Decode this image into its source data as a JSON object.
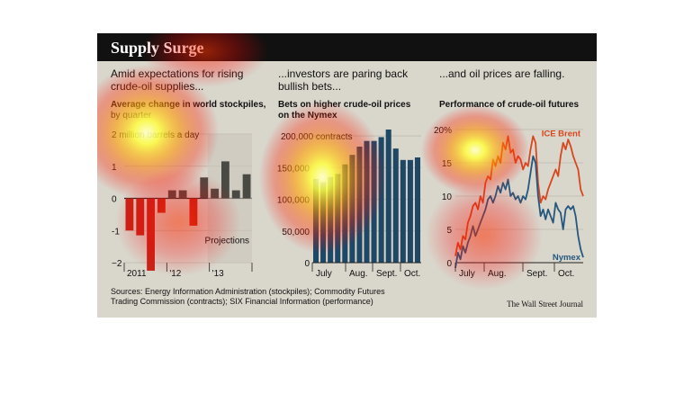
{
  "title": "Supply Surge",
  "panels": [
    {
      "heading": "Amid expectations for rising crude-oil supplies...",
      "subtitle": "Average change in world stockpiles,",
      "subtitle_note": "by quarter"
    },
    {
      "heading": "...investors are paring back bullish bets...",
      "subtitle": "Bets on higher crude-oil prices on the Nymex"
    },
    {
      "heading": "...and oil prices are falling.",
      "subtitle": "Performance of crude-oil futures"
    }
  ],
  "sources": "Sources: Energy Information Administration (stockpiles); Commodity Futures Trading Commission (contracts); SIX Financial Information (performance)",
  "credit": "The Wall Street Journal",
  "colors": {
    "title_bar": "#111111",
    "background": "#d9d6cc",
    "bar_red": "#c62418",
    "bar_gray": "#4a4a44",
    "bar_blue": "#1f4766",
    "brent": "#d9461e",
    "nymex": "#24587e"
  },
  "chart_data": [
    {
      "type": "bar",
      "units_label": "2 million barrels a day",
      "categories": [
        "2011",
        "",
        "",
        "",
        "'12",
        "",
        "",
        "",
        "'13",
        "",
        "",
        ""
      ],
      "x_tick_labels": [
        "2011",
        "'12",
        "'13"
      ],
      "values": [
        -1.0,
        -1.15,
        -2.25,
        -0.45,
        0.25,
        0.25,
        -0.85,
        0.65,
        0.3,
        1.15,
        0.25,
        0.75
      ],
      "projection_start_index": 8,
      "annotation": "Projections",
      "ylim": [
        -2,
        2
      ],
      "y_ticks": [
        2,
        1,
        0,
        -1,
        -2
      ],
      "y_tick_labels": [
        "2 million barrels a day",
        "1",
        "0",
        "-1",
        "−2"
      ]
    },
    {
      "type": "bar",
      "units_label": "200,000 contracts",
      "values": [
        132000,
        127000,
        135000,
        140000,
        155000,
        170000,
        183000,
        192000,
        192000,
        198000,
        210000,
        180000,
        162000,
        162000,
        166000
      ],
      "ylim": [
        0,
        210000
      ],
      "y_ticks": [
        200000,
        150000,
        100000,
        50000,
        0
      ],
      "y_tick_labels": [
        "200,000 contracts",
        "150,000",
        "100,000",
        "50,000",
        "0"
      ],
      "x_tick_labels": [
        "July",
        "Aug.",
        "Sept.",
        "Oct."
      ]
    },
    {
      "type": "line",
      "x_tick_labels": [
        "July",
        "Aug.",
        "Sept.",
        "Oct."
      ],
      "ylim": [
        0,
        20
      ],
      "y_ticks": [
        20,
        15,
        10,
        5,
        0
      ],
      "y_tick_labels": [
        "20%",
        "15",
        "10",
        "5",
        "0"
      ],
      "series": [
        {
          "name": "ICE Brent",
          "values": [
            1.0,
            3.0,
            2.0,
            4.0,
            3.5,
            6.0,
            7.0,
            8.5,
            9.0,
            8.0,
            10.0,
            9.0,
            12.0,
            13.0,
            12.5,
            15.5,
            14.5,
            16.0,
            15.0,
            18.0,
            17.0,
            19.0,
            16.5,
            17.0,
            15.0,
            16.0,
            15.5,
            14.0,
            15.0,
            14.5,
            17.0,
            19.0,
            18.0,
            12.0,
            9.0,
            10.0,
            9.5,
            11.0,
            12.0,
            13.0,
            14.0,
            13.0,
            16.0,
            18.0,
            17.0,
            18.5,
            17.5,
            16.0,
            15.0,
            14.0,
            11.0,
            10.0
          ]
        },
        {
          "name": "Nymex",
          "values": [
            -0.8,
            1.5,
            0.5,
            2.5,
            1.5,
            3.0,
            4.0,
            5.5,
            4.0,
            5.0,
            6.0,
            7.0,
            8.0,
            9.5,
            10.0,
            9.0,
            10.0,
            11.5,
            10.5,
            12.0,
            11.0,
            12.5,
            10.0,
            10.5,
            9.5,
            10.0,
            9.0,
            10.0,
            9.5,
            11.0,
            13.5,
            16.0,
            15.0,
            10.0,
            7.0,
            8.0,
            6.5,
            8.0,
            7.0,
            6.0,
            9.0,
            8.0,
            7.5,
            5.0,
            8.0,
            8.5,
            8.0,
            8.5,
            7.0,
            4.0,
            2.0,
            0.8
          ]
        }
      ]
    }
  ]
}
